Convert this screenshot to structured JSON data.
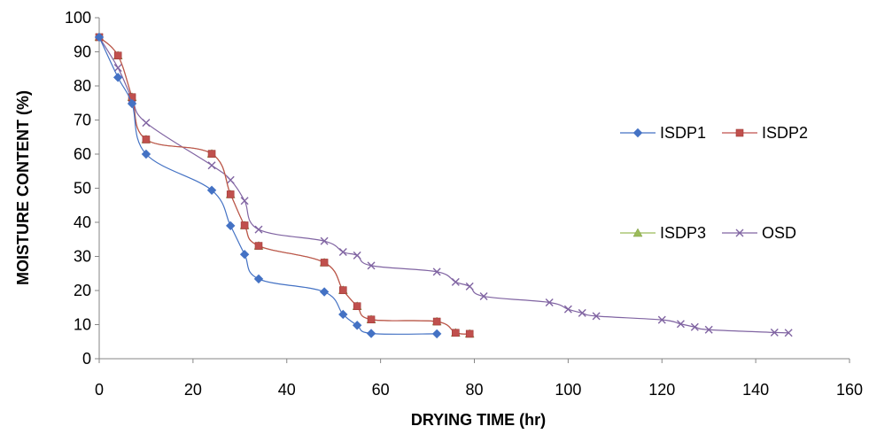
{
  "chart_data": {
    "type": "line",
    "title": "",
    "xlabel": "DRYING TIME (hr)",
    "ylabel": "MOISTURE CONTENT (%)",
    "xlim": [
      0,
      160
    ],
    "ylim": [
      0,
      100
    ],
    "xticks": [
      0,
      20,
      40,
      60,
      80,
      100,
      120,
      140,
      160
    ],
    "yticks": [
      0,
      10,
      20,
      30,
      40,
      50,
      60,
      70,
      80,
      90,
      100
    ],
    "grid": false,
    "legend_placement": "right",
    "series": [
      {
        "name": "ISDP1",
        "color": "#4472C4",
        "marker": "diamond",
        "x": [
          0,
          4,
          7,
          10,
          24,
          28,
          31,
          34,
          48,
          52,
          55,
          58,
          72
        ],
        "y": [
          94.3,
          82.5,
          74.8,
          60.0,
          49.4,
          39.0,
          30.6,
          23.4,
          19.6,
          13.0,
          9.8,
          7.4,
          7.3
        ]
      },
      {
        "name": "ISDP2",
        "color": "#C0504D",
        "marker": "square",
        "x": [
          0,
          4,
          7,
          10,
          24,
          28,
          31,
          34,
          48,
          52,
          55,
          58,
          72,
          76,
          79
        ],
        "y": [
          94.3,
          88.9,
          76.7,
          64.3,
          60.1,
          48.2,
          39.1,
          33.1,
          28.2,
          20.1,
          15.4,
          11.5,
          10.9,
          7.6,
          7.3
        ]
      },
      {
        "name": "ISDP3",
        "color": "#9BBB59",
        "marker": "triangle",
        "x": [
          0,
          4,
          7,
          10,
          24,
          28,
          31,
          34,
          48,
          52,
          55,
          58,
          72,
          76,
          79
        ],
        "y": [
          94.3,
          88.9,
          76.7,
          64.3,
          60.1,
          48.2,
          39.1,
          33.1,
          28.2,
          20.1,
          15.4,
          11.5,
          10.9,
          7.6,
          7.3
        ]
      },
      {
        "name": "OSD",
        "color": "#8064A2",
        "marker": "x",
        "x": [
          0,
          4,
          7,
          10,
          24,
          28,
          31,
          34,
          48,
          52,
          55,
          58,
          72,
          76,
          79,
          82,
          96,
          100,
          103,
          106,
          120,
          124,
          127,
          130,
          144,
          147
        ],
        "y": [
          94.3,
          85.3,
          76.3,
          69.2,
          56.7,
          52.4,
          46.3,
          37.9,
          34.5,
          31.3,
          30.3,
          27.3,
          25.5,
          22.5,
          21.2,
          18.3,
          16.5,
          14.5,
          13.4,
          12.5,
          11.4,
          10.2,
          9.3,
          8.5,
          7.7,
          7.6
        ]
      }
    ]
  }
}
